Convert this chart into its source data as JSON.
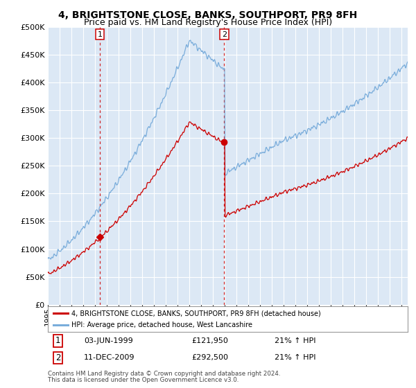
{
  "title": "4, BRIGHTSTONE CLOSE, BANKS, SOUTHPORT, PR9 8FH",
  "subtitle": "Price paid vs. HM Land Registry's House Price Index (HPI)",
  "title_fontsize": 10,
  "subtitle_fontsize": 9,
  "background_color": "#ffffff",
  "plot_bg_color": "#dce8f5",
  "grid_color": "#ffffff",
  "ylim": [
    0,
    500000
  ],
  "yticks": [
    0,
    50000,
    100000,
    150000,
    200000,
    250000,
    300000,
    350000,
    400000,
    450000,
    500000
  ],
  "sale1_x": 1999.42,
  "sale1_y": 121950,
  "sale2_x": 2009.94,
  "sale2_y": 292500,
  "sale1_date": "03-JUN-1999",
  "sale1_price": "£121,950",
  "sale1_hpi": "21% ↑ HPI",
  "sale2_date": "11-DEC-2009",
  "sale2_price": "£292,500",
  "sale2_hpi": "21% ↑ HPI",
  "line1_color": "#cc0000",
  "line2_color": "#7aaddb",
  "vline_color": "#cc0000",
  "marker_color": "#cc0000",
  "legend_label1": "4, BRIGHTSTONE CLOSE, BANKS, SOUTHPORT, PR9 8FH (detached house)",
  "legend_label2": "HPI: Average price, detached house, West Lancashire",
  "footer1": "Contains HM Land Registry data © Crown copyright and database right 2024.",
  "footer2": "This data is licensed under the Open Government Licence v3.0.",
  "xmin": 1995.0,
  "xmax": 2025.5
}
